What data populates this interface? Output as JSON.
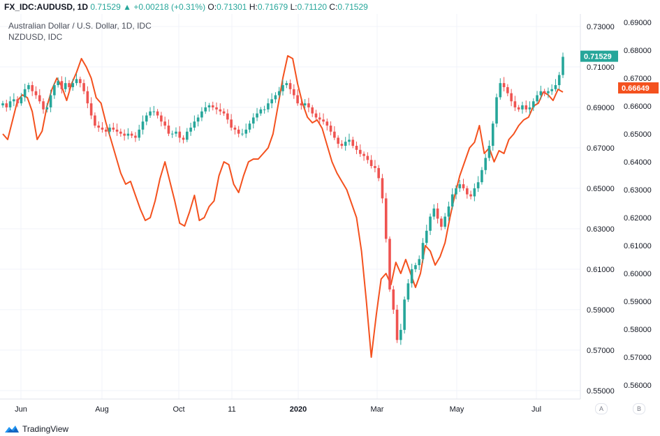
{
  "header": {
    "symbol": "FX_IDC:AUDUSD, 1D",
    "last": "0.71529",
    "arrow": "▲",
    "change": "+0.00218 (+0.31%)",
    "o_label": "O:",
    "o_value": "0.71301",
    "h_label": "H:",
    "h_value": "0.71679",
    "l_label": "L:",
    "l_value": "0.71120",
    "c_label": "C:",
    "c_value": "0.71529"
  },
  "legend": {
    "main": "Australian Dollar / U.S. Dollar, 1D, IDC",
    "compare": "NZDUSD, IDC"
  },
  "footer": {
    "brand": "TradingView",
    "scale_a": "A",
    "scale_b": "B"
  },
  "colors": {
    "up": "#26a69a",
    "down": "#ef5350",
    "compare": "#f4511e",
    "grid": "#f0f3fa",
    "axis_text": "#131722"
  },
  "chart_data": {
    "type": "line",
    "x_tick_labels": [
      "Jun",
      "Aug",
      "Oct",
      "11",
      "2020",
      "Mar",
      "May",
      "Jul"
    ],
    "left_axis": {
      "ticks": [
        "0.73000",
        "0.71000",
        "0.69000",
        "0.67000",
        "0.65000",
        "0.63000",
        "0.61000",
        "0.59000",
        "0.57000",
        "0.55000"
      ],
      "range": [
        0.5465,
        0.7355
      ],
      "current": "0.71529"
    },
    "right_axis": {
      "ticks": [
        "0.69000",
        "0.68000",
        "0.67000",
        "0.66000",
        "0.65000",
        "0.64000",
        "0.63000",
        "0.62000",
        "0.61000",
        "0.60000",
        "0.59000",
        "0.58000",
        "0.57000",
        "0.56000"
      ],
      "range": [
        0.5555,
        0.6925
      ],
      "current": "0.66649"
    },
    "series": [
      {
        "type": "candlestick",
        "axis": "left",
        "values": [
          0.692,
          0.69,
          0.693,
          0.694,
          0.692,
          0.695,
          0.699,
          0.701,
          0.698,
          0.696,
          0.693,
          0.689,
          0.69,
          0.696,
          0.701,
          0.703,
          0.699,
          0.702,
          0.7,
          0.702,
          0.704,
          0.702,
          0.698,
          0.692,
          0.686,
          0.681,
          0.68,
          0.679,
          0.678,
          0.68,
          0.679,
          0.678,
          0.677,
          0.676,
          0.677,
          0.676,
          0.675,
          0.679,
          0.683,
          0.686,
          0.688,
          0.688,
          0.686,
          0.683,
          0.681,
          0.677,
          0.677,
          0.678,
          0.675,
          0.674,
          0.678,
          0.68,
          0.683,
          0.685,
          0.688,
          0.69,
          0.691,
          0.69,
          0.689,
          0.688,
          0.687,
          0.684,
          0.68,
          0.679,
          0.677,
          0.677,
          0.679,
          0.682,
          0.685,
          0.687,
          0.689,
          0.689,
          0.692,
          0.694,
          0.696,
          0.698,
          0.701,
          0.702,
          0.699,
          0.696,
          0.692,
          0.691,
          0.692,
          0.69,
          0.687,
          0.685,
          0.684,
          0.683,
          0.681,
          0.678,
          0.675,
          0.672,
          0.671,
          0.673,
          0.674,
          0.671,
          0.669,
          0.667,
          0.666,
          0.664,
          0.661,
          0.66,
          0.655,
          0.645,
          0.625,
          0.6,
          0.59,
          0.575,
          0.58,
          0.595,
          0.603,
          0.61,
          0.612,
          0.615,
          0.623,
          0.629,
          0.636,
          0.64,
          0.635,
          0.631,
          0.636,
          0.641,
          0.647,
          0.65,
          0.652,
          0.65,
          0.647,
          0.646,
          0.65,
          0.653,
          0.659,
          0.665,
          0.671,
          0.682,
          0.695,
          0.702,
          0.7,
          0.697,
          0.693,
          0.69,
          0.689,
          0.691,
          0.689,
          0.69,
          0.693,
          0.696,
          0.698,
          0.697,
          0.698,
          0.699,
          0.701,
          0.706,
          0.715
        ]
      },
      {
        "type": "line",
        "name": "NZDUSD, IDC",
        "axis": "right",
        "values": [
          0.65,
          0.648,
          0.655,
          0.662,
          0.664,
          0.663,
          0.658,
          0.648,
          0.651,
          0.66,
          0.666,
          0.67,
          0.667,
          0.662,
          0.668,
          0.672,
          0.677,
          0.674,
          0.67,
          0.663,
          0.661,
          0.654,
          0.648,
          0.642,
          0.636,
          0.632,
          0.633,
          0.628,
          0.623,
          0.619,
          0.62,
          0.626,
          0.634,
          0.64,
          0.633,
          0.626,
          0.618,
          0.617,
          0.622,
          0.628,
          0.619,
          0.62,
          0.624,
          0.626,
          0.635,
          0.64,
          0.639,
          0.632,
          0.629,
          0.635,
          0.64,
          0.641,
          0.641,
          0.643,
          0.645,
          0.65,
          0.66,
          0.67,
          0.678,
          0.677,
          0.668,
          0.661,
          0.656,
          0.654,
          0.655,
          0.652,
          0.646,
          0.64,
          0.636,
          0.633,
          0.63,
          0.625,
          0.62,
          0.608,
          0.59,
          0.57,
          0.585,
          0.598,
          0.6,
          0.596,
          0.604,
          0.6,
          0.605,
          0.6,
          0.595,
          0.6,
          0.61,
          0.608,
          0.603,
          0.606,
          0.611,
          0.62,
          0.628,
          0.635,
          0.64,
          0.645,
          0.647,
          0.653,
          0.643,
          0.645,
          0.64,
          0.644,
          0.643,
          0.648,
          0.65,
          0.653,
          0.655,
          0.656,
          0.66,
          0.661,
          0.665,
          0.664,
          0.662,
          0.666,
          0.665
        ]
      }
    ]
  }
}
